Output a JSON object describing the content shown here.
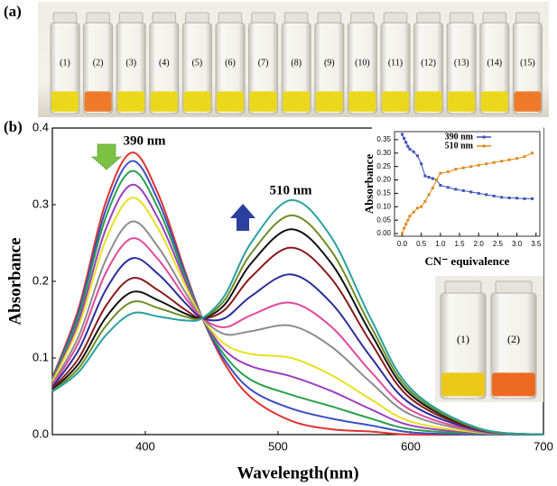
{
  "figure": {
    "panel_labels": [
      "(a)",
      "(b)"
    ],
    "vials_a": {
      "labels": [
        "(1)",
        "(2)",
        "(3)",
        "(4)",
        "(5)",
        "(6)",
        "(7)",
        "(8)",
        "(9)",
        "(10)",
        "(11)",
        "(12)",
        "(13)",
        "(14)",
        "(15)"
      ],
      "liquid_colors": [
        "#ecd81a",
        "#ee7a2a",
        "#ecd81a",
        "#ecd81a",
        "#ecd81a",
        "#ecd81a",
        "#ecd81a",
        "#ecd81a",
        "#ecd81a",
        "#ecd81a",
        "#ecd81a",
        "#ecd81a",
        "#ecd81a",
        "#ecd81a",
        "#ee7a2a"
      ]
    },
    "vials_b": {
      "labels": [
        "(1)",
        "(2)"
      ],
      "liquid_colors": [
        "#ecc81a",
        "#ee6a22"
      ]
    }
  },
  "chart_data": [
    {
      "type": "line",
      "xlabel": "Wavelength(nm)",
      "ylabel": "Absorbance",
      "annotations": [
        "390 nm",
        "510 nm"
      ],
      "x": [
        330,
        350,
        370,
        390,
        410,
        430,
        443,
        460,
        480,
        510,
        540,
        570,
        600,
        650,
        700
      ],
      "xlim": [
        330,
        700
      ],
      "xticks": [
        400,
        500,
        600,
        700
      ],
      "ylim": [
        0,
        0.4
      ],
      "yticks": [
        {
          "value": 0,
          "label": "0.0"
        },
        0.1,
        0.2,
        0.3,
        0.4
      ],
      "series": [
        {
          "color": "#e0332f",
          "values": [
            0.074,
            0.166,
            0.302,
            0.368,
            0.313,
            0.213,
            0.152,
            0.092,
            0.048,
            0.018,
            0.007,
            0.004,
            0,
            0,
            0
          ]
        },
        {
          "color": "#3a4fc4",
          "values": [
            0.073,
            0.161,
            0.292,
            0.357,
            0.304,
            0.21,
            0.152,
            0.097,
            0.058,
            0.034,
            0.021,
            0.012,
            0.003,
            0,
            0
          ]
        },
        {
          "color": "#2aa14a",
          "values": [
            0.072,
            0.156,
            0.282,
            0.344,
            0.294,
            0.206,
            0.152,
            0.103,
            0.071,
            0.052,
            0.037,
            0.021,
            0.007,
            0.001,
            0
          ]
        },
        {
          "color": "#9a3fc0",
          "values": [
            0.07,
            0.149,
            0.267,
            0.326,
            0.281,
            0.201,
            0.152,
            0.11,
            0.089,
            0.076,
            0.057,
            0.033,
            0.012,
            0.002,
            0
          ]
        },
        {
          "color": "#e8e020",
          "values": [
            0.069,
            0.142,
            0.253,
            0.309,
            0.268,
            0.195,
            0.152,
            0.118,
            0.105,
            0.1,
            0.078,
            0.046,
            0.017,
            0.003,
            0
          ]
        },
        {
          "color": "#8c8c8c",
          "values": [
            0.066,
            0.129,
            0.227,
            0.278,
            0.244,
            0.186,
            0.152,
            0.131,
            0.135,
            0.142,
            0.115,
            0.068,
            0.026,
            0.004,
            0
          ]
        },
        {
          "color": "#e24a9a",
          "values": [
            0.064,
            0.121,
            0.21,
            0.256,
            0.228,
            0.179,
            0.152,
            0.14,
            0.156,
            0.172,
            0.141,
            0.082,
            0.032,
            0.005,
            0
          ]
        },
        {
          "color": "#2a2f9a",
          "values": [
            0.062,
            0.111,
            0.188,
            0.23,
            0.209,
            0.172,
            0.152,
            0.152,
            0.181,
            0.209,
            0.172,
            0.101,
            0.04,
            0.006,
            0
          ]
        },
        {
          "color": "#8a1a1a",
          "values": [
            0.06,
            0.1,
            0.167,
            0.204,
            0.188,
            0.163,
            0.152,
            0.163,
            0.206,
            0.244,
            0.204,
            0.12,
            0.047,
            0.007,
            0
          ]
        },
        {
          "color": "#111111",
          "values": [
            0.058,
            0.093,
            0.152,
            0.186,
            0.175,
            0.158,
            0.152,
            0.17,
            0.224,
            0.268,
            0.224,
            0.132,
            0.052,
            0.008,
            0
          ]
        },
        {
          "color": "#6b8e23",
          "values": [
            0.057,
            0.087,
            0.141,
            0.173,
            0.165,
            0.154,
            0.152,
            0.176,
            0.237,
            0.286,
            0.24,
            0.141,
            0.056,
            0.008,
            0
          ]
        },
        {
          "color": "#2aa0a0",
          "values": [
            0.056,
            0.082,
            0.129,
            0.158,
            0.154,
            0.149,
            0.152,
            0.182,
            0.251,
            0.306,
            0.258,
            0.151,
            0.06,
            0.009,
            0
          ]
        }
      ]
    },
    {
      "type": "line",
      "xlabel": "CN⁻ equivalence",
      "ylabel": "Absorbance",
      "x": [
        0,
        0.05,
        0.1,
        0.15,
        0.2,
        0.3,
        0.4,
        0.5,
        0.6,
        0.7,
        0.8,
        0.9,
        1.0,
        1.2,
        1.4,
        1.6,
        1.8,
        2.0,
        2.2,
        2.4,
        2.6,
        2.8,
        3.0,
        3.2,
        3.4
      ],
      "xlim": [
        -0.2,
        3.6
      ],
      "xticks": [
        {
          "value": 0,
          "label": "0.0"
        },
        0.5,
        {
          "value": 1,
          "label": "1.0"
        },
        1.5,
        {
          "value": 2,
          "label": "2.0"
        },
        2.5,
        {
          "value": 3,
          "label": "3.0"
        },
        3.5
      ],
      "ylim": [
        -0.01,
        0.38
      ],
      "yticks": [
        {
          "value": 0,
          "label": "0.00"
        },
        0.05,
        {
          "value": 0.1,
          "label": "0.10"
        },
        0.15,
        {
          "value": 0.2,
          "label": "0.20"
        },
        0.25,
        {
          "value": 0.3,
          "label": "0.30"
        },
        0.35
      ],
      "legend": "top-right",
      "series": [
        {
          "name": "390 nm",
          "color": "#3f51b5",
          "values": [
            0.37,
            0.355,
            0.34,
            0.325,
            0.315,
            0.305,
            0.29,
            0.26,
            0.215,
            0.21,
            0.205,
            0.2,
            0.18,
            0.172,
            0.165,
            0.16,
            0.155,
            0.15,
            0.145,
            0.14,
            0.135,
            0.133,
            0.132,
            0.13,
            0.13
          ]
        },
        {
          "name": "510 nm",
          "color": "#e08a1e",
          "values": [
            0,
            0.02,
            0.035,
            0.05,
            0.065,
            0.08,
            0.095,
            0.1,
            0.12,
            0.145,
            0.17,
            0.2,
            0.225,
            0.23,
            0.24,
            0.245,
            0.25,
            0.255,
            0.26,
            0.265,
            0.27,
            0.275,
            0.28,
            0.287,
            0.3
          ]
        }
      ]
    }
  ]
}
